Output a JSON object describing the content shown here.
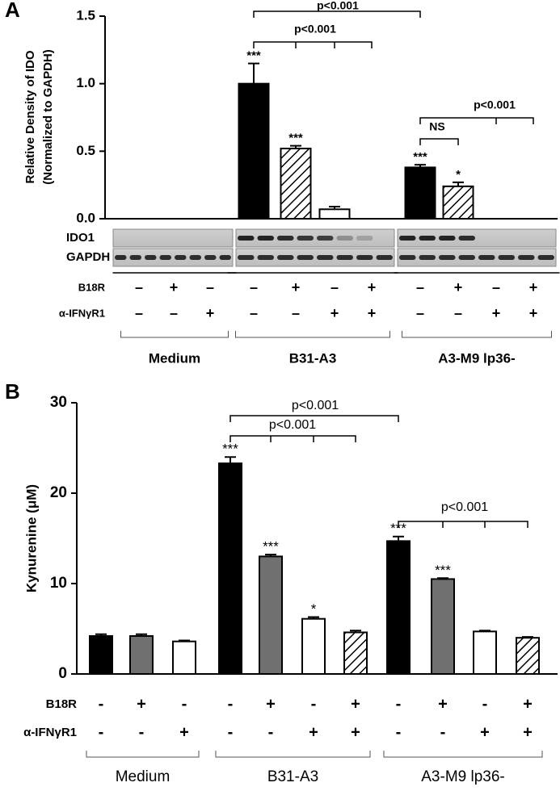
{
  "chart_data": [
    {
      "type": "bar",
      "panel": "A",
      "ylabel": [
        "Relative Density of IDO",
        "(Normalized to GAPDH)"
      ],
      "ylim": [
        0,
        1.5
      ],
      "yticks": [
        {
          "value": 0,
          "label": "0.0"
        },
        0.5,
        {
          "value": 1,
          "label": "1.0"
        },
        1.5
      ],
      "values": [
        0,
        0,
        0,
        1.0,
        0.52,
        0.07,
        0,
        0.38,
        0.24,
        0,
        0
      ],
      "errors": [
        0,
        0,
        0,
        0.15,
        0.02,
        0.02,
        0,
        0.02,
        0.03,
        0,
        0
      ],
      "colors": [
        "#000000",
        "hatch",
        "#ffffff",
        "#000000",
        "hatch",
        "#ffffff",
        "#ffffff",
        "#000000",
        "hatch",
        "#ffffff",
        "#ffffff"
      ],
      "stars": [
        null,
        null,
        null,
        "***",
        "***",
        null,
        null,
        "***",
        "*",
        null,
        null
      ],
      "comparisons": [
        "p<0.001",
        "p<0.001",
        "NS",
        "p<0.001"
      ],
      "blot_labels": [
        "IDO1",
        "GAPDH"
      ],
      "treatments": [
        {
          "name": "B18R",
          "signs": [
            "–",
            "+",
            "–",
            "–",
            "+",
            "–",
            "+",
            "–",
            "+",
            "–",
            "+"
          ]
        },
        {
          "name": "α-IFNγR1",
          "signs": [
            "–",
            "–",
            "+",
            "–",
            "–",
            "+",
            "+",
            "–",
            "–",
            "+",
            "+"
          ]
        }
      ],
      "groups": [
        {
          "name": "Medium",
          "count": 3
        },
        {
          "name": "B31-A3",
          "count": 4
        },
        {
          "name": "A3-M9 lp36-",
          "count": 4
        }
      ]
    },
    {
      "type": "bar",
      "panel": "B",
      "ylabel": [
        "Kynurenine (μM)"
      ],
      "ylim": [
        0,
        30
      ],
      "yticks": [
        0,
        10,
        20,
        30
      ],
      "values": [
        4.2,
        4.2,
        3.6,
        23.3,
        13.0,
        6.1,
        4.6,
        14.7,
        10.5,
        4.7,
        4.0
      ],
      "errors": [
        0.2,
        0.2,
        0.1,
        0.7,
        0.2,
        0.2,
        0.2,
        0.5,
        0.1,
        0.1,
        0.1
      ],
      "colors": [
        "#000000",
        "#707070",
        "#ffffff",
        "#000000",
        "#707070",
        "#ffffff",
        "hatch",
        "#000000",
        "#707070",
        "#ffffff",
        "hatch"
      ],
      "stars": [
        null,
        null,
        null,
        "***",
        "***",
        "*",
        null,
        "***",
        "***",
        null,
        null
      ],
      "comparisons": [
        "p<0.001",
        "p<0.001",
        "p<0.001"
      ],
      "treatments": [
        {
          "name": "B18R",
          "signs": [
            "-",
            "+",
            "-",
            "-",
            "+",
            "-",
            "+",
            "-",
            "+",
            "-",
            "+"
          ]
        },
        {
          "name": "α-IFNγR1",
          "signs": [
            "-",
            "-",
            "+",
            "-",
            "-",
            "+",
            "+",
            "-",
            "-",
            "+",
            "+"
          ]
        }
      ],
      "groups": [
        {
          "name": "Medium",
          "count": 3
        },
        {
          "name": "B31-A3",
          "count": 4
        },
        {
          "name": "A3-M9 lp36-",
          "count": 4
        }
      ]
    }
  ]
}
